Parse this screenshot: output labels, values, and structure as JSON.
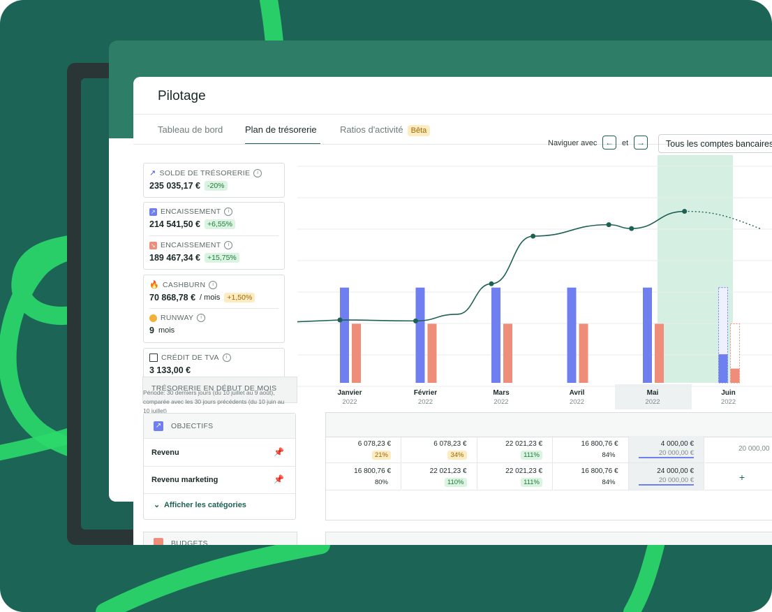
{
  "app": {
    "title": "Pilotage"
  },
  "tabs": [
    {
      "label": "Tableau de bord"
    },
    {
      "label": "Plan de trésorerie"
    },
    {
      "label": "Ratios d'activité",
      "badge": "Bêta"
    }
  ],
  "nav": {
    "prefix": "Naviguer avec",
    "left_arrow": "←",
    "middle": "et",
    "right_arrow": "→",
    "account_select": "Tous les comptes bancaires"
  },
  "kpis": {
    "solde": {
      "label": "SOLDE DE TRÉSORERIE",
      "value": "235 035,17 €",
      "delta": "-20%"
    },
    "encaissement_in": {
      "label": "ENCAISSEMENT",
      "value": "214 541,50 €",
      "delta": "+6,55%"
    },
    "encaissement_out": {
      "label": "ENCAISSEMENT",
      "value": "189 467,34 €",
      "delta": "+15,75%"
    },
    "cashburn": {
      "label": "CASHBURN",
      "value": "70 868,78 €",
      "unit": "/ mois",
      "delta": "+1,50%"
    },
    "runway": {
      "label": "RUNWAY",
      "value": "9",
      "unit": "mois"
    },
    "tva": {
      "label": "CRÉDIT DE TVA",
      "value": "3 133,00 €"
    }
  },
  "tooltip": {
    "header": "TRÉSORERIE EN DÉBUT DE MOIS",
    "text": "Période: 30 derniers jours (du 10 juillet au 9 août), comparée avec les 30 jours précédents (du 10 juin au 10 juillet)"
  },
  "objectives": {
    "title": "OBJECTIFS",
    "rows": [
      {
        "name": "Revenu"
      },
      {
        "name": "Revenu marketing"
      }
    ],
    "show_categories": "Afficher les catégories"
  },
  "budgets": {
    "title": "BUDGETS"
  },
  "months": [
    {
      "name": "Janvier",
      "year": "2022"
    },
    {
      "name": "Février",
      "year": "2022"
    },
    {
      "name": "Mars",
      "year": "2022"
    },
    {
      "name": "Avril",
      "year": "2022"
    },
    {
      "name": "Mai",
      "year": "2022"
    },
    {
      "name": "Juin",
      "year": "2022"
    }
  ],
  "table": {
    "revenu": [
      {
        "value": "6 078,23 €",
        "pct": "21%"
      },
      {
        "value": "6 078,23 €",
        "pct": "34%"
      },
      {
        "value": "22 021,23 €",
        "pct": "111%"
      },
      {
        "value": "16 800,76 €",
        "pct": "84%"
      },
      {
        "value": "4 000,00 €",
        "target": "20 000,00 €"
      },
      {
        "value": "20 000,00"
      }
    ],
    "revenu_marketing": [
      {
        "value": "16 800,76 €",
        "pct": "80%"
      },
      {
        "value": "22 021,23 €",
        "pct": "110%"
      },
      {
        "value": "22 021,23 €",
        "pct": "111%"
      },
      {
        "value": "16 800,76 €",
        "pct": "84%"
      },
      {
        "value": "24 000,00 €",
        "target": "20 000,00 €"
      },
      {
        "value": "+"
      }
    ]
  },
  "colors": {
    "brand": "#1d6154",
    "inflow": "#6f7ff0",
    "outflow": "#ee8e7a",
    "accent_stroke": "#2bd96a"
  },
  "chart_data": {
    "type": "bar",
    "categories": [
      "Janvier",
      "Février",
      "Mars",
      "Avril",
      "Mai",
      "Juin"
    ],
    "series": [
      {
        "values": [
          100,
          100,
          100,
          100,
          100,
          30
        ],
        "forecast": [
          0,
          0,
          0,
          0,
          0,
          100
        ]
      },
      {
        "values": [
          62,
          62,
          62,
          62,
          62,
          15
        ],
        "forecast": [
          0,
          0,
          0,
          0,
          0,
          62
        ]
      }
    ],
    "line": [
      {
        "x": 0.0,
        "y": 66
      },
      {
        "x": 1.0,
        "y": 65
      },
      {
        "x": 1.55,
        "y": 72
      },
      {
        "x": 2.0,
        "y": 104
      },
      {
        "x": 2.55,
        "y": 154
      },
      {
        "x": 3.55,
        "y": 166
      },
      {
        "x": 3.85,
        "y": 162
      },
      {
        "x": 4.55,
        "y": 180
      },
      {
        "x": 5.0,
        "y": 169
      }
    ],
    "ylim": [
      0,
      220
    ],
    "grid": true,
    "highlight_category": "Juin"
  }
}
